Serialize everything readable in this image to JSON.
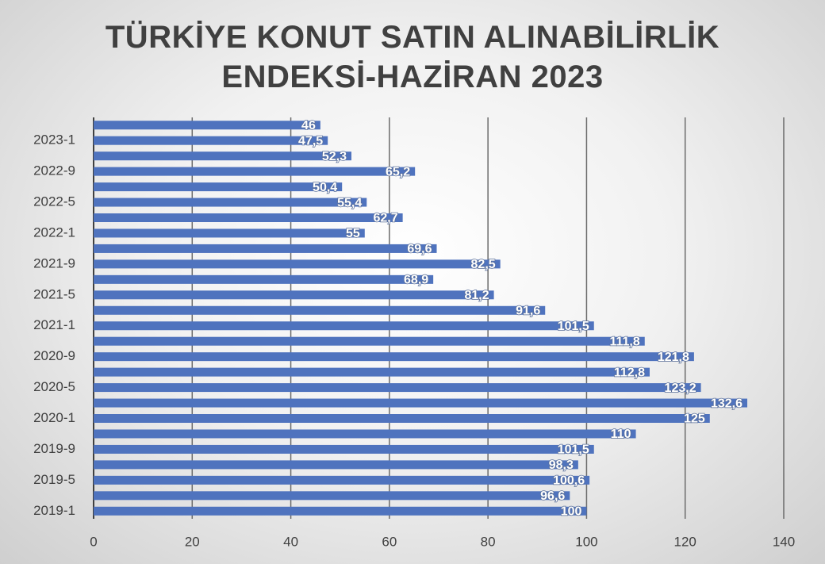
{
  "chart_data": {
    "type": "barh",
    "title": "TÜRKİYE KONUT SATIN ALINABİLİRLİK ENDEKSİ-HAZİRAN 2023",
    "categories": [
      "2019-1",
      null,
      "2019-5",
      null,
      "2019-9",
      null,
      "2020-1",
      null,
      "2020-5",
      null,
      "2020-9",
      null,
      "2021-1",
      null,
      "2021-5",
      null,
      "2021-9",
      null,
      "2022-1",
      null,
      "2022-5",
      null,
      "2022-9",
      null,
      "2023-1",
      null
    ],
    "values": [
      100,
      96.6,
      100.6,
      98.3,
      101.5,
      110,
      125,
      132.6,
      123.2,
      112.8,
      121.8,
      111.8,
      101.5,
      91.6,
      81.2,
      68.9,
      82.5,
      69.6,
      55,
      62.7,
      55.4,
      50.4,
      65.2,
      52.3,
      47.5,
      46
    ],
    "value_labels": [
      "100",
      "96,6",
      "100,6",
      "98,3",
      "101,5",
      "110",
      "125",
      "132,6",
      "123,2",
      "112,8",
      "121,8",
      "111,8",
      "101,5",
      "91,6",
      "81,2",
      "68,9",
      "82,5",
      "69,6",
      "55",
      "62,7",
      "55,4",
      "50,4",
      "65,2",
      "52,3",
      "47,5",
      "46"
    ],
    "color": "#4f73be",
    "xlim": [
      0,
      140
    ],
    "xticks": [
      0,
      20,
      40,
      60,
      80,
      100,
      120,
      140
    ],
    "grid": true
  }
}
